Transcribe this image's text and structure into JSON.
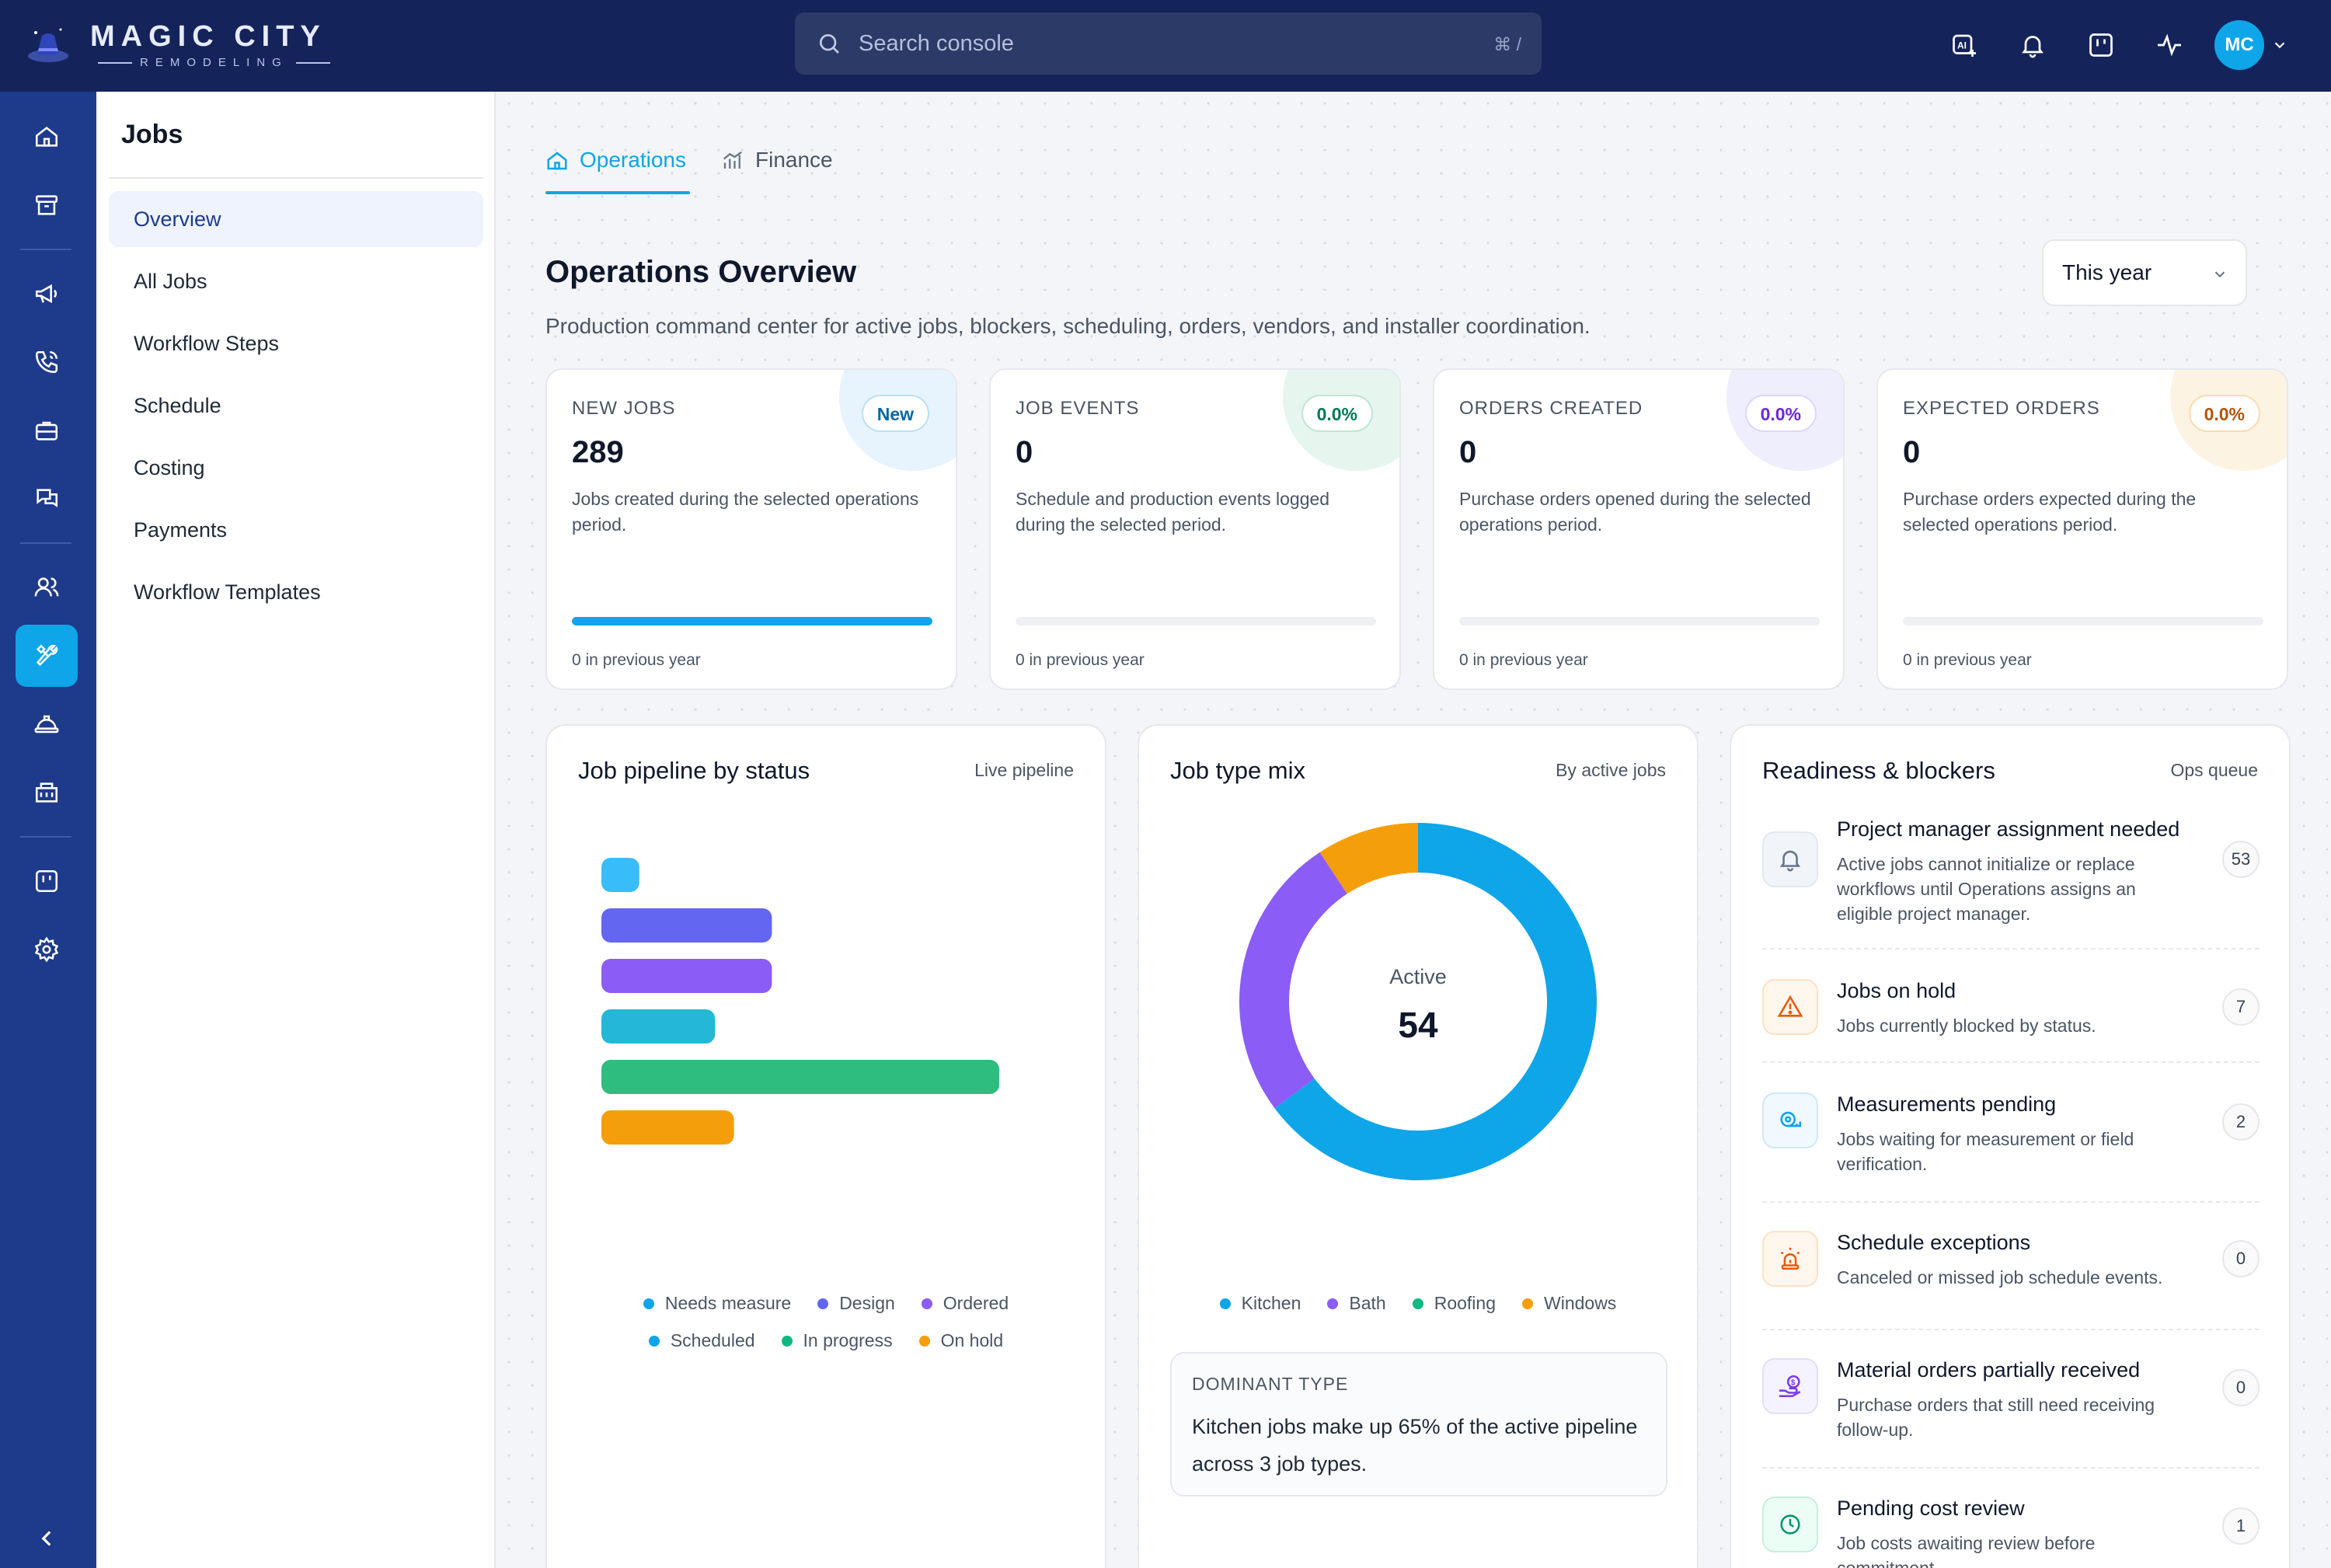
{
  "brand": {
    "name": "MAGIC CITY",
    "tagline": "REMODELING"
  },
  "search": {
    "placeholder": "Search console",
    "shortcut": "⌘ /"
  },
  "user": {
    "initials": "MC"
  },
  "topbar_icons": [
    "ai-assistant-icon",
    "bell-icon",
    "kanban-icon",
    "activity-icon"
  ],
  "rail_icons": [
    "home-icon",
    "archive-icon",
    "megaphone-icon",
    "phone-icon",
    "briefcase-icon",
    "chat-icon",
    "users-icon",
    "tools-icon",
    "hardhat-icon",
    "building-icon",
    "board-icon",
    "settings-icon",
    "chevron-left-icon"
  ],
  "subnav": {
    "title": "Jobs",
    "items": [
      {
        "label": "Overview",
        "active": true
      },
      {
        "label": "All Jobs"
      },
      {
        "label": "Workflow Steps"
      },
      {
        "label": "Schedule"
      },
      {
        "label": "Costing"
      },
      {
        "label": "Payments"
      },
      {
        "label": "Workflow Templates"
      }
    ]
  },
  "tabs": [
    {
      "label": "Operations",
      "icon": "home-icon",
      "active": true
    },
    {
      "label": "Finance",
      "icon": "bar-chart-icon",
      "active": false
    }
  ],
  "page": {
    "title": "Operations Overview",
    "description": "Production command center for active jobs, blockers, scheduling, orders, vendors, and installer coordination.",
    "period": "This year"
  },
  "kpis": [
    {
      "label": "New Jobs",
      "value": "289",
      "badge": "New",
      "desc": "Jobs created during the selected operations period.",
      "progress": 1.0,
      "prev": "0 in previous year",
      "accent": "#0ea5e9"
    },
    {
      "label": "Job Events",
      "value": "0",
      "badge": "0.0%",
      "desc": "Schedule and production events logged during the selected period.",
      "progress": 0,
      "prev": "0 in previous year",
      "accent": "#10b981"
    },
    {
      "label": "Orders Created",
      "value": "0",
      "badge": "0.0%",
      "desc": "Purchase orders opened during the selected operations period.",
      "progress": 0,
      "prev": "0 in previous year",
      "accent": "#7c3aed"
    },
    {
      "label": "Expected Orders",
      "value": "0",
      "badge": "0.0%",
      "desc": "Purchase orders expected during the selected operations period.",
      "progress": 0,
      "prev": "0 in previous year",
      "accent": "#f59e0b"
    }
  ],
  "pipeline": {
    "title": "Job pipeline by status",
    "meta": "Live pipeline"
  },
  "job_mix": {
    "title": "Job type mix",
    "meta": "By active jobs",
    "center_label": "Active",
    "center_value": "54",
    "dominant_label": "DOMINANT TYPE",
    "dominant_text": "Kitchen jobs make up 65% of the active pipeline across 3 job types."
  },
  "readiness": {
    "title": "Readiness & blockers",
    "meta": "Ops queue",
    "items": [
      {
        "title": "Project manager assignment needed",
        "desc": "Active jobs cannot initialize or replace workflows until Operations assigns an eligible project manager.",
        "count": "53",
        "icon": "bell-icon",
        "color": "#64748b"
      },
      {
        "title": "Jobs on hold",
        "desc": "Jobs currently blocked by status.",
        "count": "7",
        "icon": "warning-icon",
        "color": "#ea580c"
      },
      {
        "title": "Measurements pending",
        "desc": "Jobs waiting for measurement or field verification.",
        "count": "2",
        "icon": "tape-measure-icon",
        "color": "#0ea5e9"
      },
      {
        "title": "Schedule exceptions",
        "desc": "Canceled or missed job schedule events.",
        "count": "0",
        "icon": "siren-icon",
        "color": "#ea580c"
      },
      {
        "title": "Material orders partially received",
        "desc": "Purchase orders that still need receiving follow-up.",
        "count": "0",
        "icon": "money-hand-icon",
        "color": "#7c3aed"
      },
      {
        "title": "Pending cost review",
        "desc": "Job costs awaiting review before commitment.",
        "count": "1",
        "icon": "clock-icon",
        "color": "#10b981"
      }
    ]
  },
  "chart_data": [
    {
      "type": "bar",
      "orientation": "horizontal",
      "title": "Job pipeline by status",
      "categories": [
        "Needs measure",
        "Design",
        "Ordered",
        "Scheduled",
        "In progress",
        "On hold"
      ],
      "values": [
        2,
        9,
        9,
        6,
        21,
        7
      ],
      "colors": [
        "#38bdf8",
        "#6366f1",
        "#8b5cf6",
        "#22b8d6",
        "#2ebd7f",
        "#f59e0b"
      ],
      "legend": [
        {
          "name": "Needs measure",
          "color": "#0ea5e9"
        },
        {
          "name": "Design",
          "color": "#6366f1"
        },
        {
          "name": "Ordered",
          "color": "#8b5cf6"
        },
        {
          "name": "Scheduled",
          "color": "#0ea5e9"
        },
        {
          "name": "In progress",
          "color": "#10b981"
        },
        {
          "name": "On hold",
          "color": "#f59e0b"
        }
      ],
      "legend_position": "bottom",
      "grid": false
    },
    {
      "type": "pie",
      "variant": "donut",
      "title": "Job type mix",
      "categories": [
        "Kitchen",
        "Bath",
        "Roofing",
        "Windows"
      ],
      "values": [
        35,
        14,
        5,
        0
      ],
      "colors": [
        "#0ea5e9",
        "#8b5cf6",
        "#f59e0b",
        "#f59e0b"
      ],
      "legend": [
        {
          "name": "Kitchen",
          "color": "#0ea5e9"
        },
        {
          "name": "Bath",
          "color": "#8b5cf6"
        },
        {
          "name": "Roofing",
          "color": "#10b981"
        },
        {
          "name": "Windows",
          "color": "#f59e0b"
        }
      ],
      "legend_position": "bottom"
    }
  ]
}
